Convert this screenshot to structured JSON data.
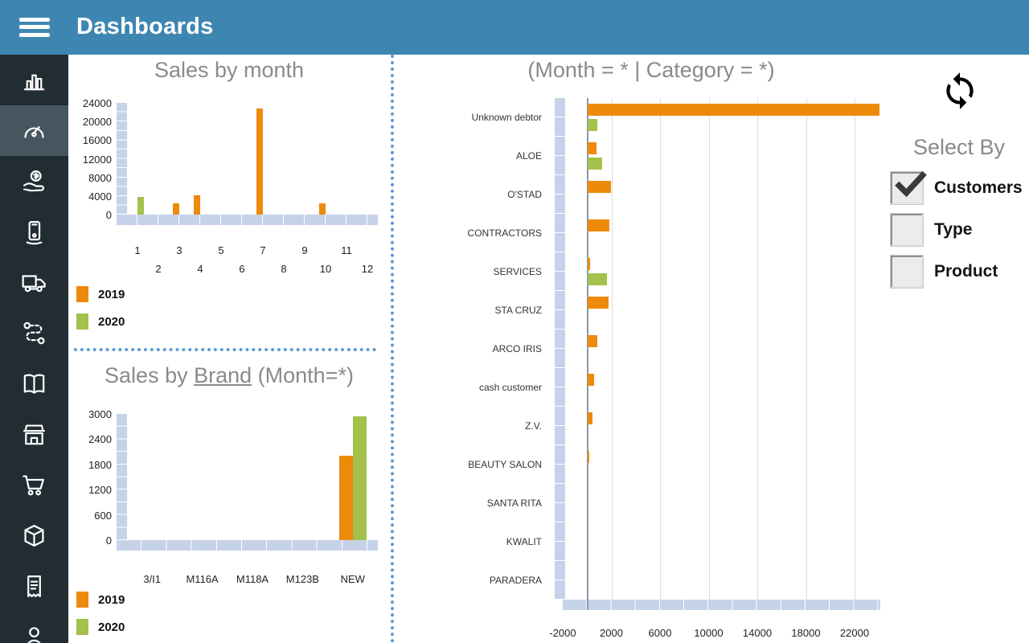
{
  "header": {
    "title": "Dashboards"
  },
  "sidebar": {
    "selected_index": 1,
    "items": [
      "bar-chart",
      "dashboard-gauge",
      "money-hand",
      "mobile-order",
      "delivery-truck",
      "route-map",
      "catalog-book",
      "store",
      "shopping-cart",
      "package",
      "receipt",
      "customer-person"
    ]
  },
  "colors": {
    "header_blue": "#3E86B2",
    "sidebar_dark": "#222D33",
    "sidebar_selected": "#46575F",
    "orange": "#EE8A0B",
    "green": "#A3C14B",
    "axis_band": "#C5D2E8",
    "dotted_blue": "#5C9BD5",
    "title_gray": "#8A8A8A"
  },
  "chart_data": [
    {
      "type": "bar",
      "title": "Sales by month",
      "categories": [
        "1",
        "2",
        "3",
        "4",
        "5",
        "6",
        "7",
        "8",
        "9",
        "10",
        "11",
        "12"
      ],
      "series": [
        {
          "name": "2019",
          "color": "#EE8A0B",
          "values": [
            0,
            0,
            2500,
            4200,
            0,
            0,
            22800,
            0,
            0,
            2400,
            0,
            0
          ]
        },
        {
          "name": "2020",
          "color": "#A3C14B",
          "values": [
            3800,
            0,
            0,
            0,
            0,
            0,
            0,
            0,
            0,
            0,
            0,
            0
          ]
        }
      ],
      "ylim": [
        0,
        24000
      ],
      "yticks": [
        0,
        4000,
        8000,
        12000,
        16000,
        20000,
        24000
      ],
      "legend_position": "bottom-left"
    },
    {
      "type": "bar",
      "title": "Sales by Brand (Month=*)",
      "title_parts": {
        "prefix": "Sales by ",
        "underlined": "Brand",
        "suffix": " (Month=*)"
      },
      "categories": [
        "3/I1",
        "M116A",
        "M118A",
        "M123B",
        "NEW"
      ],
      "series": [
        {
          "name": "2019",
          "color": "#EE8A0B",
          "values": [
            0,
            0,
            0,
            0,
            2000
          ]
        },
        {
          "name": "2020",
          "color": "#A3C14B",
          "values": [
            0,
            0,
            0,
            0,
            2950
          ]
        }
      ],
      "ylim": [
        0,
        3000
      ],
      "yticks": [
        0,
        600,
        1200,
        1800,
        2400,
        3000
      ],
      "legend_position": "bottom-left"
    },
    {
      "type": "horizontal-bar",
      "title": "(Month = * | Category = *)",
      "categories": [
        "Unknown debtor",
        "ALOE",
        "O'STAD",
        "CONTRACTORS",
        "SERVICES",
        "STA CRUZ",
        "ARCO IRIS",
        "cash customer",
        "Z.V.",
        "BEAUTY SALON",
        "SANTA RITA",
        "KWALIT",
        "PARADERA"
      ],
      "series": [
        {
          "name": "2019",
          "color": "#EE8A0B",
          "values": [
            24000,
            700,
            1900,
            1800,
            200,
            1700,
            800,
            500,
            400,
            100,
            0,
            0,
            0
          ]
        },
        {
          "name": "2020",
          "color": "#A3C14B",
          "values": [
            800,
            1200,
            0,
            0,
            1600,
            0,
            0,
            0,
            0,
            0,
            0,
            0,
            0
          ]
        }
      ],
      "xlim": [
        -2000,
        24000
      ],
      "xticks": [
        -2000,
        2000,
        6000,
        10000,
        14000,
        18000,
        22000
      ]
    }
  ],
  "select_by": {
    "title": "Select By",
    "options": [
      {
        "label": "Customers",
        "checked": true
      },
      {
        "label": "Type",
        "checked": false
      },
      {
        "label": "Product",
        "checked": false
      }
    ]
  }
}
